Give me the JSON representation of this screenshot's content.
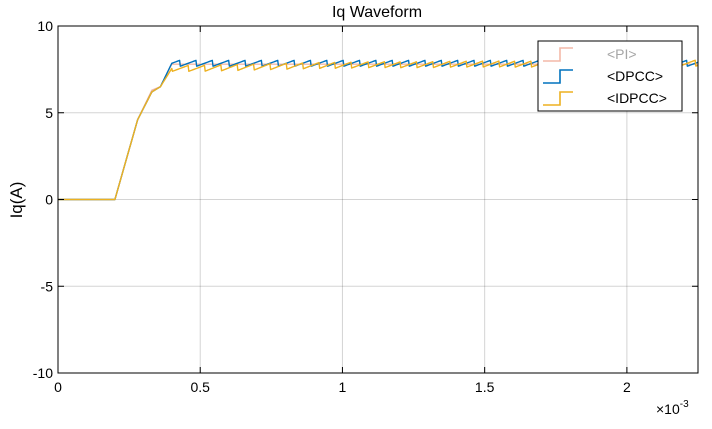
{
  "chart_data": {
    "type": "line",
    "title": "Iq Waveform",
    "xlabel": "",
    "ylabel": "Iq(A)",
    "x_exponent_label": "×10",
    "x_exponent_power": "-3",
    "xlim": [
      0,
      0.00225
    ],
    "ylim": [
      -10,
      10
    ],
    "xticks": [
      0,
      0.0005,
      0.001,
      0.0015,
      0.002
    ],
    "xtick_labels": [
      "0",
      "0.5",
      "1",
      "1.5",
      "2"
    ],
    "yticks": [
      -10,
      -5,
      0,
      5,
      10
    ],
    "ytick_labels": [
      "-10",
      "-5",
      "0",
      "5",
      "10"
    ],
    "grid": true,
    "legend": "top-right",
    "series": [
      {
        "name": "<PI>",
        "color": "#f4b9a8",
        "ripple": 0,
        "x": [
          0,
          0.0002,
          0.00028,
          0.00033,
          0.00036,
          0.0004,
          0.00225
        ],
        "values": [
          0,
          0,
          4.6,
          6.3,
          6.5,
          7.8,
          7.8
        ]
      },
      {
        "name": "<DPCC>",
        "color": "#0072bd",
        "ripple": 0.35,
        "x": [
          0,
          0.0002,
          0.00028,
          0.00033,
          0.00036,
          0.0004,
          0.00225
        ],
        "values": [
          0,
          0,
          4.6,
          6.2,
          6.5,
          7.85,
          7.85
        ]
      },
      {
        "name": "<IDPCC>",
        "color": "#edb120",
        "ripple": 0.35,
        "x": [
          0,
          0.0002,
          0.00028,
          0.00033,
          0.00036,
          0.0004,
          0.0005,
          0.001,
          0.0015,
          0.00225
        ],
        "values": [
          0,
          0,
          4.6,
          6.2,
          6.5,
          7.55,
          7.55,
          7.75,
          7.8,
          7.85
        ]
      }
    ]
  },
  "legend_labels": [
    "<PI>",
    "<DPCC>",
    "<IDPCC>"
  ],
  "legend_text_colors": [
    "#a6a6a6",
    "#000000",
    "#000000"
  ]
}
